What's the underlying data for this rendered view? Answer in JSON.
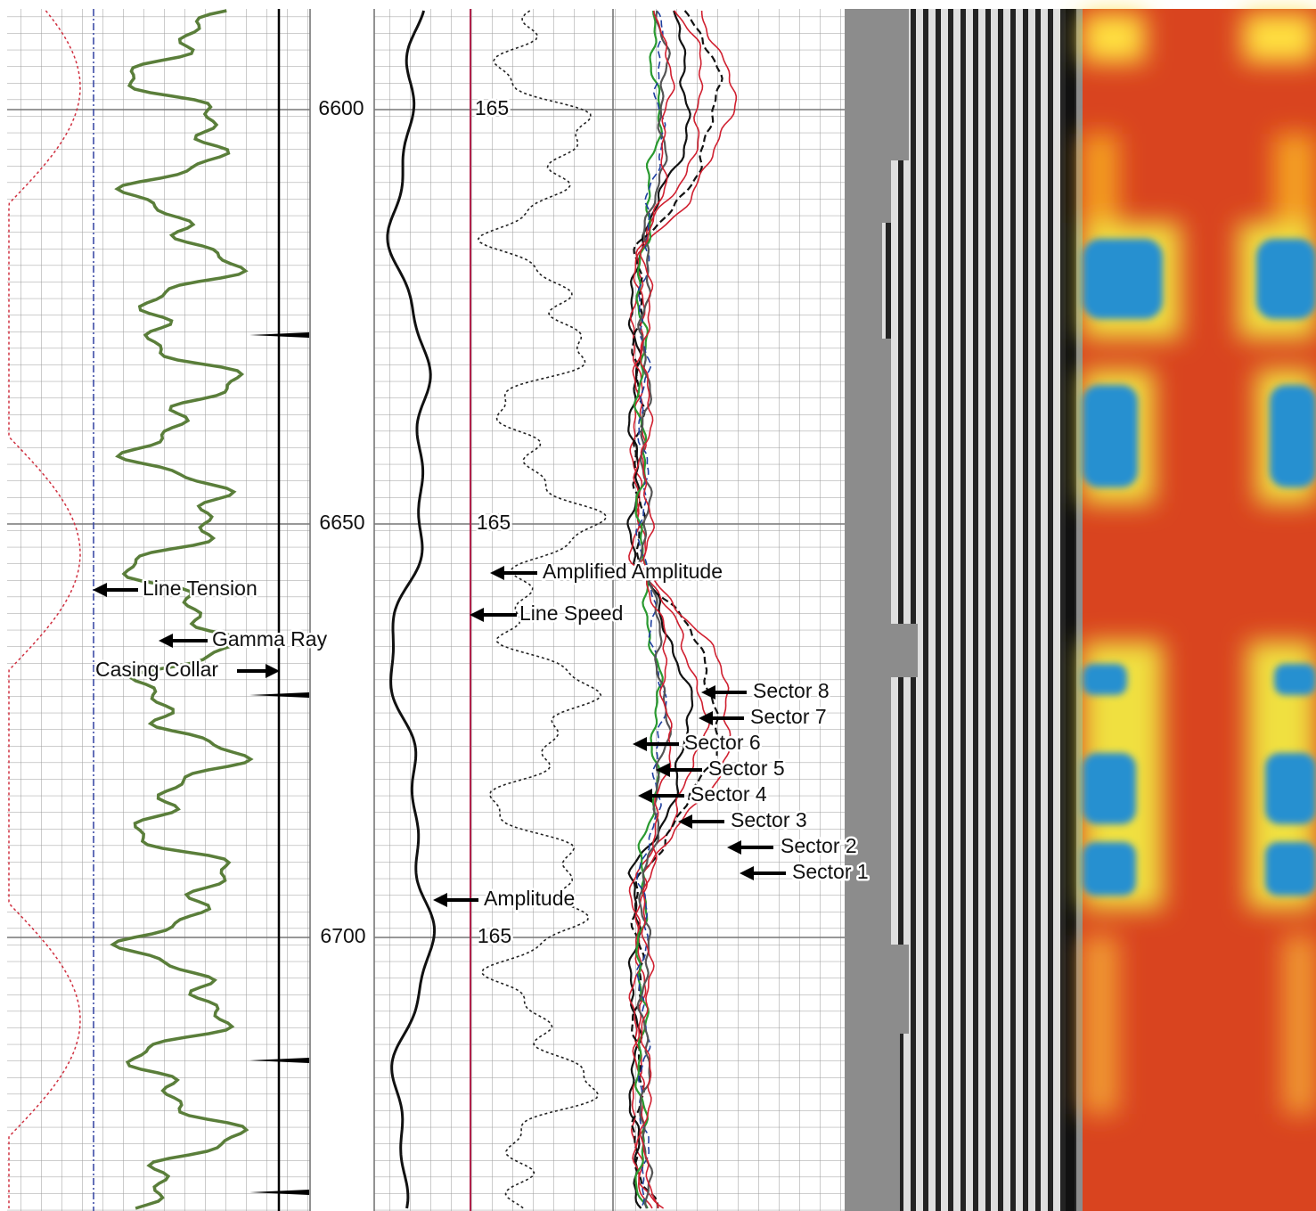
{
  "depth_track": {
    "depths": [
      6600,
      6650,
      6700
    ],
    "scale_labels": [
      "165",
      "165",
      "165"
    ]
  },
  "annotations": {
    "track1": [
      "Line Tension",
      "Gamma Ray",
      "Casing Collar"
    ],
    "track2": [
      "Amplified Amplitude",
      "Line Speed",
      "Amplitude"
    ],
    "sectors": [
      "Sector 8",
      "Sector 7",
      "Sector 6",
      "Sector 5",
      "Sector 4",
      "Sector 3",
      "Sector 2",
      "Sector 1"
    ]
  }
}
